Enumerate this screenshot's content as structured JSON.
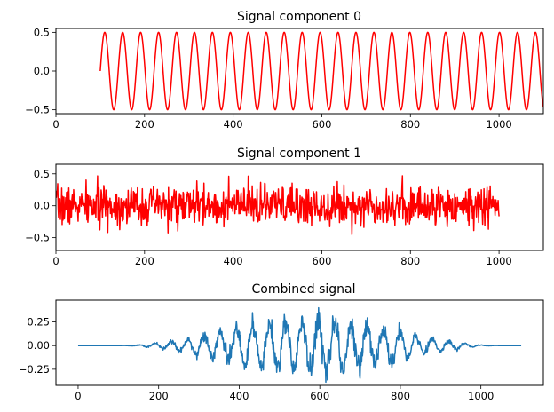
{
  "chart_data": [
    {
      "type": "line",
      "title": "Signal component 0",
      "color": "#ff0000",
      "xlim": [
        0,
        1100
      ],
      "ylim": [
        -0.55,
        0.55
      ],
      "xticks": [
        0,
        200,
        400,
        600,
        800,
        1000
      ],
      "xtick_labels": [
        "0",
        "200",
        "400",
        "600",
        "800",
        "1000"
      ],
      "yticks": [
        0.5,
        0.0,
        -0.5
      ],
      "ytick_labels": [
        "0.5",
        "0.0",
        "−0.5"
      ],
      "series": [
        {
          "kind": "sine",
          "x_start": 100,
          "x_end": 1100,
          "amplitude": 0.5,
          "period": 40.5,
          "phase": 0
        }
      ]
    },
    {
      "type": "line",
      "title": "Signal component 1",
      "color": "#ff0000",
      "xlim": [
        0,
        1100
      ],
      "ylim": [
        -0.7,
        0.65
      ],
      "xticks": [
        0,
        200,
        400,
        600,
        800,
        1000
      ],
      "xtick_labels": [
        "0",
        "200",
        "400",
        "600",
        "800",
        "1000"
      ],
      "yticks": [
        0.5,
        0.0,
        -0.5
      ],
      "ytick_labels": [
        "0.5",
        "0.0",
        "−0.5"
      ],
      "series": [
        {
          "kind": "noise",
          "x_start": 0,
          "x_end": 1000,
          "std": 0.15,
          "max_abs": 0.6,
          "seed": 7
        }
      ]
    },
    {
      "type": "line",
      "title": "Combined signal",
      "color": "#1f77b4",
      "xlim": [
        -55,
        1155
      ],
      "ylim": [
        -0.42,
        0.48
      ],
      "xticks": [
        0,
        200,
        400,
        600,
        800,
        1000
      ],
      "xtick_labels": [
        "0",
        "200",
        "400",
        "600",
        "800",
        "1000"
      ],
      "yticks": [
        0.25,
        0.0,
        -0.25
      ],
      "ytick_labels": [
        "0.25",
        "0.00",
        "−0.25"
      ],
      "series": [
        {
          "kind": "windowed_mix",
          "x_start": 0,
          "x_end": 1100,
          "signal_start": 100,
          "signal_end": 1050,
          "amplitude": 0.25,
          "period": 40.5,
          "noise_std": 0.07,
          "peak_abs": 0.45,
          "seed": 13
        }
      ]
    }
  ]
}
